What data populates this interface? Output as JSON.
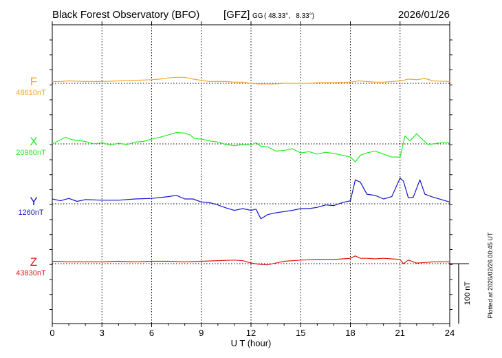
{
  "header": {
    "title": "Black Forest Observatory (BFO)",
    "org": "[GFZ]",
    "coord_system": "GG",
    "coords": "( 48.33°,   8.33°)",
    "date": "2026/01/26"
  },
  "side_note": "Plotted at 2026/02/26 00:45 UT",
  "scale_label": "100 nT",
  "colors": {
    "F": "#f5a623",
    "X": "#22ee22",
    "Y": "#1414c8",
    "Z": "#e01818",
    "axis": "#000000"
  },
  "chart_data": {
    "type": "line",
    "xlabel": "U T (hour)",
    "xlim": [
      0,
      24
    ],
    "x_ticks": [
      "0",
      "3",
      "6",
      "9",
      "12",
      "15",
      "18",
      "21",
      "24"
    ],
    "grid": true,
    "scale_nT": 100,
    "series": [
      {
        "name": "F",
        "baseline_label": "48610nT",
        "baseline": 48610,
        "x": [
          0,
          0.5,
          1,
          2,
          3,
          4,
          5,
          6,
          6.5,
          7,
          7.5,
          8,
          8.5,
          9,
          9.5,
          10,
          10.5,
          11,
          11.5,
          12,
          12.5,
          13,
          13.5,
          14,
          14.5,
          15,
          15.5,
          16,
          17,
          18,
          18.5,
          19,
          19.5,
          20,
          20.5,
          21,
          21.2,
          21.5,
          22,
          22.5,
          23,
          24
        ],
        "y": [
          48613,
          48613,
          48614,
          48613,
          48613,
          48614,
          48615,
          48616,
          48617,
          48619,
          48620,
          48620,
          48617,
          48615,
          48613,
          48613,
          48613,
          48612,
          48612,
          48610,
          48609,
          48609,
          48609,
          48610,
          48610,
          48610,
          48610,
          48611,
          48611,
          48612,
          48614,
          48613,
          48612,
          48612,
          48613,
          48614,
          48615,
          48617,
          48616,
          48618,
          48614,
          48613
        ]
      },
      {
        "name": "X",
        "baseline_label": "20980nT",
        "baseline": 20980,
        "x": [
          0,
          0.3,
          0.8,
          1.2,
          2,
          2.5,
          3,
          3.5,
          4,
          4.5,
          5,
          5.5,
          6,
          6.5,
          7,
          7.5,
          8,
          8.3,
          8.6,
          9,
          9.5,
          10,
          10.5,
          11,
          11.5,
          12,
          12.3,
          12.6,
          13,
          13.5,
          14,
          14.5,
          15,
          15.5,
          16,
          16.5,
          17,
          17.5,
          18,
          18.3,
          18.6,
          19,
          19.5,
          20,
          20.5,
          21,
          21.3,
          21.6,
          22,
          22.4,
          22.7,
          23,
          23.5,
          24
        ],
        "y": [
          20980,
          20984,
          20991,
          20987,
          20984,
          20980,
          20982,
          20978,
          20981,
          20979,
          20983,
          20984,
          20988,
          20991,
          20995,
          20999,
          20998,
          20995,
          20989,
          20988,
          20985,
          20983,
          20979,
          20977,
          20979,
          20978,
          20982,
          20976,
          20975,
          20968,
          20969,
          20972,
          20965,
          20967,
          20963,
          20966,
          20964,
          20961,
          20958,
          20950,
          20961,
          20965,
          20968,
          20963,
          20958,
          20958,
          20993,
          20985,
          20997,
          20986,
          20979,
          20980,
          20982,
          20982
        ]
      },
      {
        "name": "Y",
        "baseline_label": "1260nT",
        "baseline": 1260,
        "x": [
          0,
          0.5,
          1,
          1.5,
          2,
          3,
          4,
          5,
          6,
          7,
          7.5,
          8,
          8.5,
          9,
          9.5,
          10,
          10.5,
          11,
          11.5,
          12,
          12.3,
          12.6,
          13,
          13.5,
          14,
          14.5,
          15,
          15.5,
          16,
          16.5,
          17,
          17.5,
          18,
          18.3,
          18.6,
          19,
          19.5,
          20,
          20.5,
          21,
          21.2,
          21.5,
          21.8,
          22.2,
          22.5,
          23,
          23.5,
          24
        ],
        "y": [
          1268,
          1265,
          1269,
          1264,
          1267,
          1266,
          1266,
          1268,
          1269,
          1272,
          1274,
          1268,
          1268,
          1263,
          1262,
          1258,
          1253,
          1249,
          1252,
          1249,
          1251,
          1235,
          1242,
          1245,
          1247,
          1249,
          1252,
          1252,
          1254,
          1258,
          1257,
          1262,
          1265,
          1300,
          1296,
          1276,
          1274,
          1268,
          1272,
          1303,
          1298,
          1270,
          1271,
          1300,
          1276,
          1271,
          1267,
          1263
        ]
      },
      {
        "name": "Z",
        "baseline_label": "43830nT",
        "baseline": 43830,
        "x": [
          0,
          1,
          2,
          3,
          4,
          5,
          6,
          7,
          8,
          9,
          10,
          11,
          11.5,
          12,
          12.5,
          13,
          13.5,
          14,
          15,
          16,
          17,
          18,
          18.3,
          18.6,
          19,
          19.5,
          20,
          20.5,
          21,
          21.2,
          21.5,
          22,
          22.5,
          23,
          24
        ],
        "y": [
          43834,
          43833,
          43833,
          43833,
          43834,
          43833,
          43834,
          43834,
          43833,
          43834,
          43835,
          43836,
          43835,
          43831,
          43829,
          43828,
          43831,
          43834,
          43836,
          43837,
          43837,
          43839,
          43843,
          43839,
          43839,
          43838,
          43839,
          43838,
          43837,
          43830,
          43836,
          43831,
          43832,
          43833,
          43833
        ]
      }
    ]
  }
}
